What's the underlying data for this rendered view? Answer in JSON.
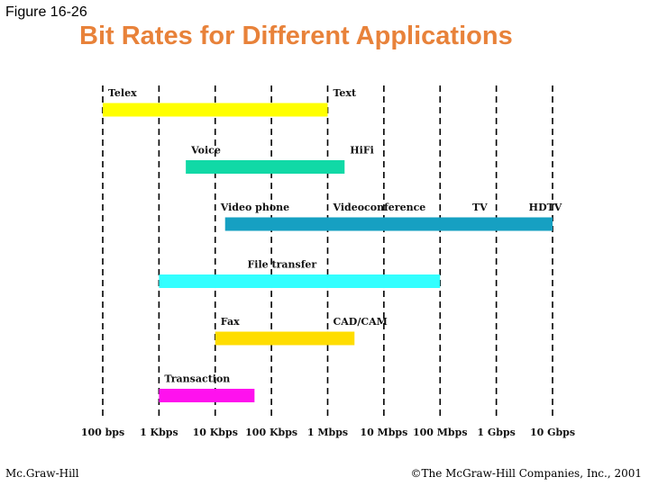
{
  "figure_label": "Figure 16-26",
  "title": "Bit Rates for Different Applications",
  "footer": {
    "left": "Mc.Graw-Hill",
    "right": "©The McGraw-Hill Companies, Inc., 2001"
  },
  "chart_data": {
    "type": "bar",
    "orientation": "horizontal",
    "title": "Bit Rates for Different Applications",
    "xlabel": "",
    "ylabel": "",
    "x_scale": "log10",
    "x_unit": "bps",
    "tick_values": [
      100,
      1000,
      10000,
      100000,
      1000000,
      10000000,
      100000000,
      1000000000,
      10000000000
    ],
    "tick_labels": [
      "100 bps",
      "1 Kbps",
      "10 Kbps",
      "100 Kbps",
      "1 Mbps",
      "10 Mbps",
      "100 Mbps",
      "1 Gbps",
      "10 Gbps"
    ],
    "grid": true,
    "series": [
      {
        "name": "Telex-Text",
        "start": 100,
        "end": 1000000,
        "color": "#ffff00",
        "labels": [
          {
            "text": "Telex",
            "at": 100
          },
          {
            "text": "Text",
            "at": 1000000
          }
        ]
      },
      {
        "name": "Voice-HiFi",
        "start": 3000,
        "end": 2000000,
        "color": "#11d9a6",
        "labels": [
          {
            "text": "Voice",
            "at": 3000
          },
          {
            "text": "HiFi",
            "at": 2000000
          }
        ]
      },
      {
        "name": "Video",
        "start": 15000,
        "end": 10000000000,
        "color": "#16a0c2",
        "labels": [
          {
            "text": "Video phone",
            "at": 10000
          },
          {
            "text": "Videoconference",
            "at": 1000000
          },
          {
            "text": "TV",
            "at": 300000000
          },
          {
            "text": "HDTV",
            "at": 10000000000
          }
        ]
      },
      {
        "name": "File transfer",
        "start": 1000,
        "end": 100000000,
        "color": "#33ffff",
        "labels": [
          {
            "text": "File transfer",
            "at": 30000
          }
        ]
      },
      {
        "name": "Fax-CAD/CAM",
        "start": 10000,
        "end": 3000000,
        "color": "#ffdd00",
        "labels": [
          {
            "text": "Fax",
            "at": 10000
          },
          {
            "text": "CAD/CAM",
            "at": 1000000
          }
        ]
      },
      {
        "name": "Transaction",
        "start": 1000,
        "end": 50000,
        "color": "#ff11ee",
        "labels": [
          {
            "text": "Transaction",
            "at": 1000
          }
        ]
      }
    ]
  }
}
